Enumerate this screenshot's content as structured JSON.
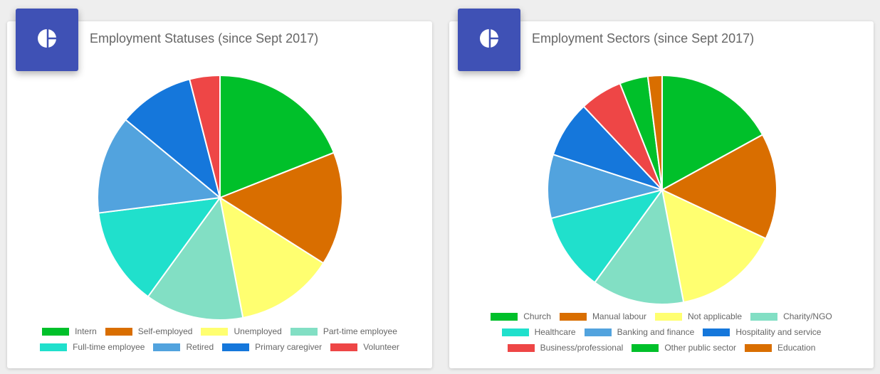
{
  "colors": {
    "icon_bg": "#3f51b5",
    "slice_border": "#ffffff"
  },
  "charts": [
    {
      "title": "Employment Statuses (since Sept 2017)",
      "icon": "pie-chart-icon"
    },
    {
      "title": "Employment Sectors (since Sept 2017)",
      "icon": "pie-chart-icon"
    }
  ],
  "chart_data": [
    {
      "type": "pie",
      "title": "Employment Statuses (since Sept 2017)",
      "legend_position": "bottom",
      "categories": [
        "Intern",
        "Self-employed",
        "Unemployed",
        "Part-time employee",
        "Full-time employee",
        "Retired",
        "Primary caregiver",
        "Volunteer"
      ],
      "values": [
        19,
        15,
        13,
        13,
        13,
        13,
        10,
        4
      ],
      "colors": [
        "#00c02a",
        "#d96e00",
        "#ffff70",
        "#82dfc4",
        "#20e0cc",
        "#52a3de",
        "#1577db",
        "#ee4646"
      ]
    },
    {
      "type": "pie",
      "title": "Employment Sectors (since Sept 2017)",
      "legend_position": "bottom",
      "categories": [
        "Church",
        "Manual labour",
        "Not applicable",
        "Charity/NGO",
        "Healthcare",
        "Banking and finance",
        "Hospitality and service",
        "Business/professional",
        "Other public sector",
        "Education"
      ],
      "values": [
        17,
        15,
        15,
        13,
        11,
        9,
        8,
        6,
        4,
        2
      ],
      "colors": [
        "#00c02a",
        "#d96e00",
        "#ffff70",
        "#82dfc4",
        "#20e0cc",
        "#52a3de",
        "#1577db",
        "#ee4646",
        "#00c02a",
        "#d96e00"
      ]
    }
  ]
}
